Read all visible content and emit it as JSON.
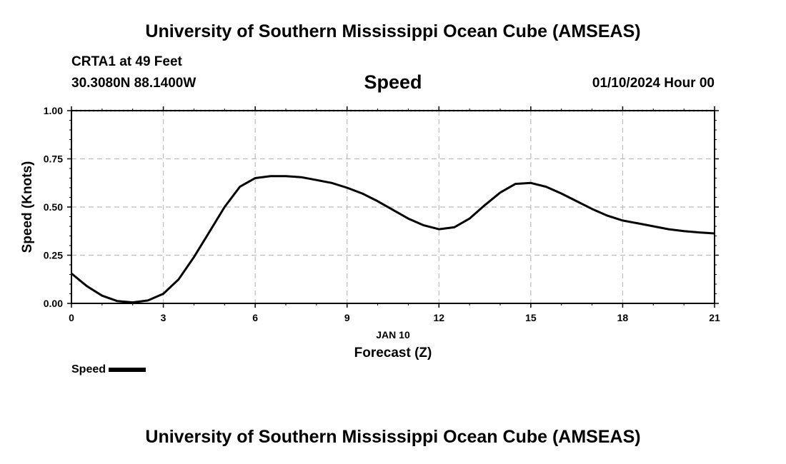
{
  "header": {
    "title": "University of Southern Mississippi Ocean Cube (AMSEAS)",
    "station": "CRTA1 at 49 Feet",
    "coords": "30.3080N  88.1400W",
    "variable": "Speed",
    "datetime": "01/10/2024 Hour 00"
  },
  "footer": {
    "title": "University of Southern Mississippi Ocean Cube (AMSEAS)"
  },
  "chart_data": {
    "type": "line",
    "ylabel": "Speed (Knots)",
    "xlabel": "Forecast (Z)",
    "date_label": "JAN 10",
    "xlim": [
      0,
      21
    ],
    "ylim": [
      0,
      1
    ],
    "xticks": [
      0,
      3,
      6,
      9,
      12,
      15,
      18,
      21
    ],
    "yticks": [
      "0.00",
      "0.25",
      "0.50",
      "0.75",
      "1.00"
    ],
    "grid": true,
    "legend_position": "bottom-left",
    "series": [
      {
        "name": "Speed",
        "color": "#000000",
        "x": [
          0,
          0.5,
          1,
          1.5,
          2,
          2.5,
          3,
          3.5,
          4,
          4.5,
          5,
          5.5,
          6,
          6.5,
          7,
          7.5,
          8,
          8.5,
          9,
          9.5,
          10,
          10.5,
          11,
          11.5,
          12,
          12.5,
          13,
          13.5,
          14,
          14.5,
          15,
          15.5,
          16,
          16.5,
          17,
          17.5,
          18,
          18.5,
          19,
          19.5,
          20,
          20.5,
          21
        ],
        "values": [
          0.155,
          0.09,
          0.04,
          0.012,
          0.005,
          0.015,
          0.05,
          0.125,
          0.24,
          0.37,
          0.5,
          0.605,
          0.65,
          0.66,
          0.66,
          0.655,
          0.64,
          0.625,
          0.6,
          0.57,
          0.53,
          0.485,
          0.44,
          0.405,
          0.385,
          0.395,
          0.44,
          0.51,
          0.575,
          0.62,
          0.625,
          0.605,
          0.57,
          0.53,
          0.49,
          0.455,
          0.43,
          0.415,
          0.4,
          0.385,
          0.375,
          0.368,
          0.363
        ]
      }
    ]
  }
}
